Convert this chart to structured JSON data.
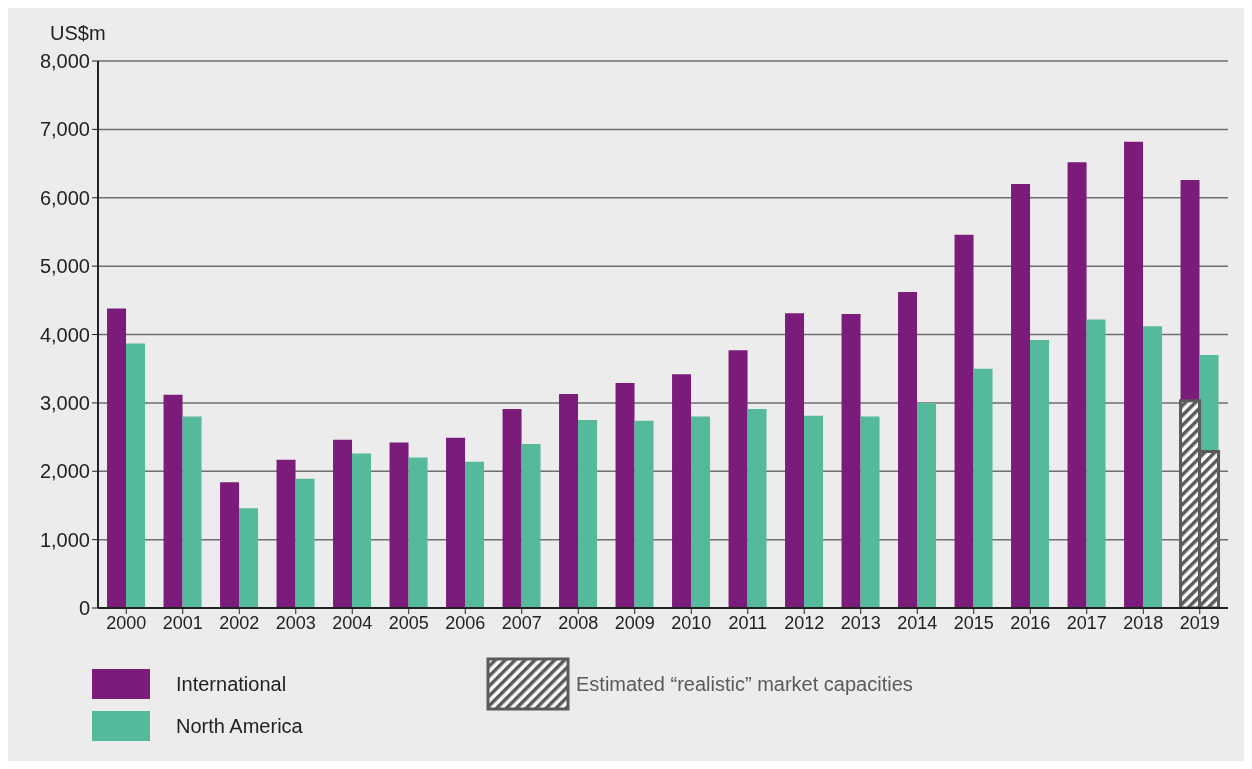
{
  "chart_data": {
    "type": "bar",
    "ylabel": "US$m",
    "categories": [
      "2000",
      "2001",
      "2002",
      "2003",
      "2004",
      "2005",
      "2006",
      "2007",
      "2008",
      "2009",
      "2010",
      "2011",
      "2012",
      "2013",
      "2014",
      "2015",
      "2016",
      "2017",
      "2018",
      "2019"
    ],
    "series": [
      {
        "name": "International",
        "color": "#7b1c7a",
        "values": [
          4380,
          3120,
          1840,
          2170,
          2460,
          2420,
          2490,
          2910,
          3130,
          3290,
          3420,
          3770,
          4310,
          4300,
          4620,
          5460,
          6200,
          6520,
          6820,
          6260
        ]
      },
      {
        "name": "North America",
        "color": "#55b99b",
        "values": [
          3870,
          2800,
          1460,
          1890,
          2260,
          2200,
          2140,
          2400,
          2750,
          2740,
          2800,
          2910,
          2810,
          2800,
          3000,
          3500,
          3920,
          4220,
          4120,
          3700
        ]
      },
      {
        "name": "Estimated “realistic” market capacities",
        "color": "#5a5a5a",
        "values": [
          null,
          null,
          null,
          null,
          null,
          null,
          null,
          null,
          null,
          null,
          null,
          null,
          null,
          null,
          null,
          null,
          null,
          null,
          null,
          3030
        ]
      },
      {
        "color": "#5a5a5a",
        "values": [
          null,
          null,
          null,
          null,
          null,
          null,
          null,
          null,
          null,
          null,
          null,
          null,
          null,
          null,
          null,
          null,
          null,
          null,
          null,
          2290
        ]
      }
    ],
    "ylim": [
      0,
      8000
    ],
    "yticks": [
      0,
      {
        "value": 1000,
        "label": "1,000"
      },
      {
        "value": 2000,
        "label": "2,000"
      },
      {
        "value": 3000,
        "label": "3,000"
      },
      {
        "value": 4000,
        "label": "4,000"
      },
      {
        "value": 5000,
        "label": "5,000"
      },
      {
        "value": 6000,
        "label": "6,000"
      },
      {
        "value": 7000,
        "label": "7,000"
      },
      {
        "value": 8000,
        "label": "8,000"
      }
    ],
    "grid": "y",
    "legend": "bottom"
  }
}
